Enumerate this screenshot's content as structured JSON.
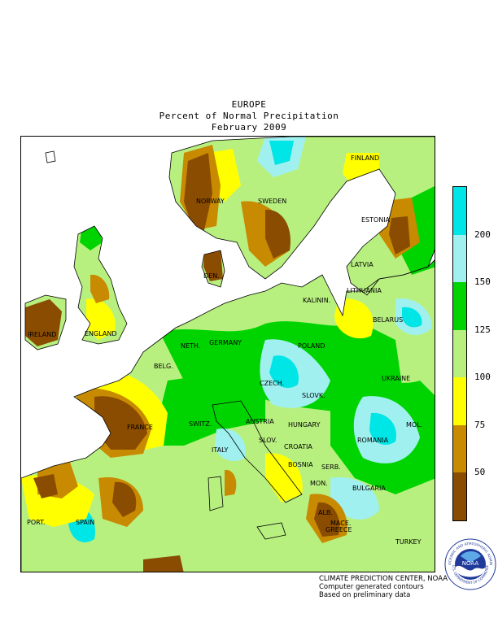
{
  "title": {
    "region": "EUROPE",
    "variable": "Percent of Normal Precipitation",
    "period": "February 2009"
  },
  "legend": {
    "ticks": [
      "200",
      "150",
      "125",
      "100",
      "75",
      "50"
    ],
    "bins": [
      {
        "label": ">200",
        "color": "#00e5e5"
      },
      {
        "label": "150-200",
        "color": "#a0f0f0"
      },
      {
        "label": "125-150",
        "color": "#00d400"
      },
      {
        "label": "100-125",
        "color": "#b8f080"
      },
      {
        "label": "75-100",
        "color": "#ffff00"
      },
      {
        "label": "50-75",
        "color": "#c88a00"
      },
      {
        "label": "<50",
        "color": "#8a4c00"
      }
    ]
  },
  "labels": {
    "finland": "FINLAND",
    "norway": "NORWAY",
    "sweden": "SWEDEN",
    "estonia": "ESTONIA",
    "latvia": "LATVIA",
    "lithuania": "LITHUANIA",
    "kalinin": "KALININ.",
    "belarus": "BELARUS",
    "ireland": "IRELAND",
    "england": "ENGLAND",
    "den": "DEN.",
    "neth": "NETH.",
    "germany": "GERMANY",
    "poland": "POLAND",
    "belg": "BELG.",
    "czech": "CZECH.",
    "ukraine": "UKRAINE",
    "slovk": "SLOVK.",
    "france": "FRANCE",
    "switz": "SWITZ.",
    "austria": "AUSTRIA",
    "hungary": "HUNGARY",
    "mol": "MOL.",
    "romania": "ROMANIA",
    "slov": "SLOV.",
    "croatia": "CROATIA",
    "italy": "ITALY",
    "bosnia": "BOSNIA",
    "serb": "SERB.",
    "mon": "MON.",
    "bulgaria": "BULGARIA",
    "port": "PORT.",
    "spain": "SPAIN",
    "mace": "MACE.",
    "alb": "ALB.",
    "greece": "GREECE",
    "turkey": "TURKEY"
  },
  "credits": {
    "line1": "CLIMATE PREDICTION CENTER, NOAA",
    "line2": "Computer generated contours",
    "line3": "Based on preliminary data"
  },
  "logo": {
    "text": "NOAA",
    "ring_top": "NATIONAL OCEANIC AND ATMOSPHERIC ADMINISTRATION",
    "ring_bottom": "U.S. DEPARTMENT OF COMMERCE"
  }
}
